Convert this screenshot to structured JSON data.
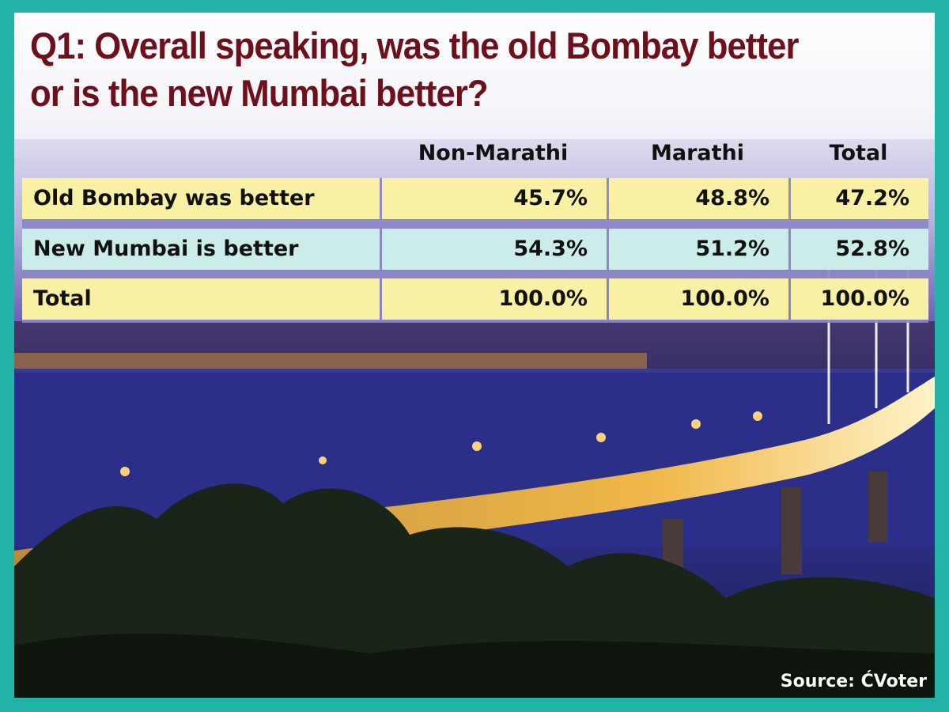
{
  "title": [
    "Q1: Overall speaking, was the old Bombay better",
    "or is the new Mumbai better?"
  ],
  "table": {
    "columns": [
      "Non-Marathi",
      "Marathi",
      "Total"
    ],
    "rows": [
      [
        "Old Bombay was better",
        "45.7%",
        "48.8%",
        "47.2%"
      ],
      [
        "New Mumbai is better",
        "54.3%",
        "51.2%",
        "52.8%"
      ],
      [
        "Total",
        "100.0%",
        "100.0%",
        "100.0%"
      ]
    ]
  },
  "source": "Source: ĆVoter"
}
